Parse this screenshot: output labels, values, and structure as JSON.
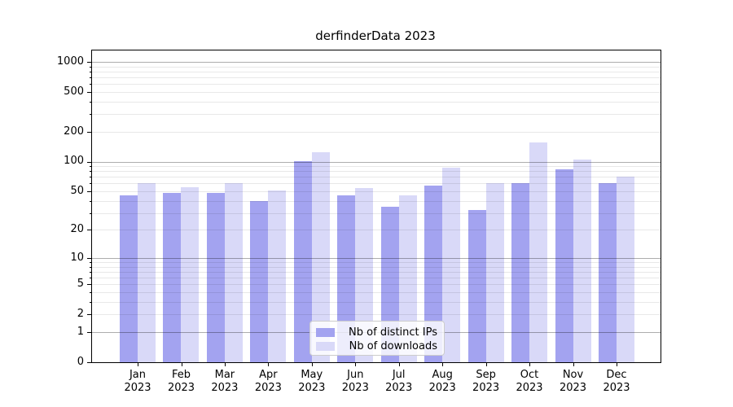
{
  "chart_data": {
    "type": "bar",
    "title": "derfinderData 2023",
    "categories": [
      "Jan",
      "Feb",
      "Mar",
      "Apr",
      "May",
      "Jun",
      "Jul",
      "Aug",
      "Sep",
      "Oct",
      "Nov",
      "Dec"
    ],
    "year_label": "2023",
    "series": [
      {
        "name": "Nb of distinct IPs",
        "color": "#a3a3f0",
        "values": [
          45,
          48,
          48,
          40,
          100,
          45,
          35,
          57,
          32,
          61,
          83,
          60
        ]
      },
      {
        "name": "Nb of downloads",
        "color": "#d9d9f8",
        "values": [
          61,
          55,
          61,
          51,
          125,
          54,
          45,
          87,
          61,
          155,
          105,
          71
        ]
      }
    ],
    "yscale": "log1p",
    "ylim": [
      0,
      1300
    ],
    "ytick_labels": [
      "0",
      "1",
      "2",
      "5",
      "10",
      "20",
      "50",
      "100",
      "200",
      "500",
      "1000"
    ],
    "yticks_labeled_values": [
      0,
      1,
      2,
      5,
      10,
      20,
      50,
      100,
      200,
      500,
      1000
    ],
    "grid": {
      "major_gridlines_at": [
        1,
        10,
        100,
        1000
      ],
      "minor_gridlines": "2-9 per decade",
      "position": "over bars"
    },
    "legend": {
      "position": "inside bottom-center",
      "frame": true
    },
    "xlabel": "",
    "ylabel": ""
  },
  "colors": {
    "bar_distinct_ips": "#a3a3f0",
    "bar_downloads": "#d9d9f8",
    "grid_major": "#b0b0b0",
    "grid_minor": "#e8e8e8",
    "axis": "#000000",
    "background": "#ffffff",
    "legend_border": "#cccccc"
  }
}
